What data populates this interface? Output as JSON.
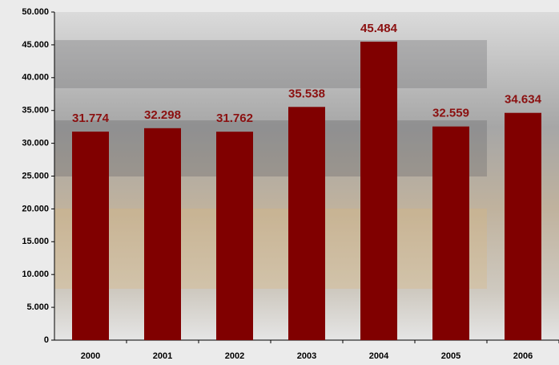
{
  "chart_data": {
    "type": "bar",
    "categories": [
      "2000",
      "2001",
      "2002",
      "2003",
      "2004",
      "2005",
      "2006"
    ],
    "values": [
      31774,
      32298,
      31762,
      35538,
      45484,
      32559,
      34634
    ],
    "value_labels": [
      "31.774",
      "32.298",
      "31.762",
      "35.538",
      "45.484",
      "32.559",
      "34.634"
    ],
    "color": "#800000",
    "ylim": [
      0,
      50000
    ],
    "yticks": [
      0,
      {
        "value": 5000,
        "label": "5.000"
      },
      {
        "value": 10000,
        "label": "10.000"
      },
      {
        "value": 15000,
        "label": "15.000"
      },
      {
        "value": 20000,
        "label": "20.000"
      },
      {
        "value": 25000,
        "label": "25.000"
      },
      {
        "value": 30000,
        "label": "30.000"
      },
      {
        "value": 35000,
        "label": "35.000"
      },
      {
        "value": 40000,
        "label": "40.000"
      },
      {
        "value": 45000,
        "label": "45.000"
      },
      {
        "value": 50000,
        "label": "50.000"
      }
    ]
  }
}
